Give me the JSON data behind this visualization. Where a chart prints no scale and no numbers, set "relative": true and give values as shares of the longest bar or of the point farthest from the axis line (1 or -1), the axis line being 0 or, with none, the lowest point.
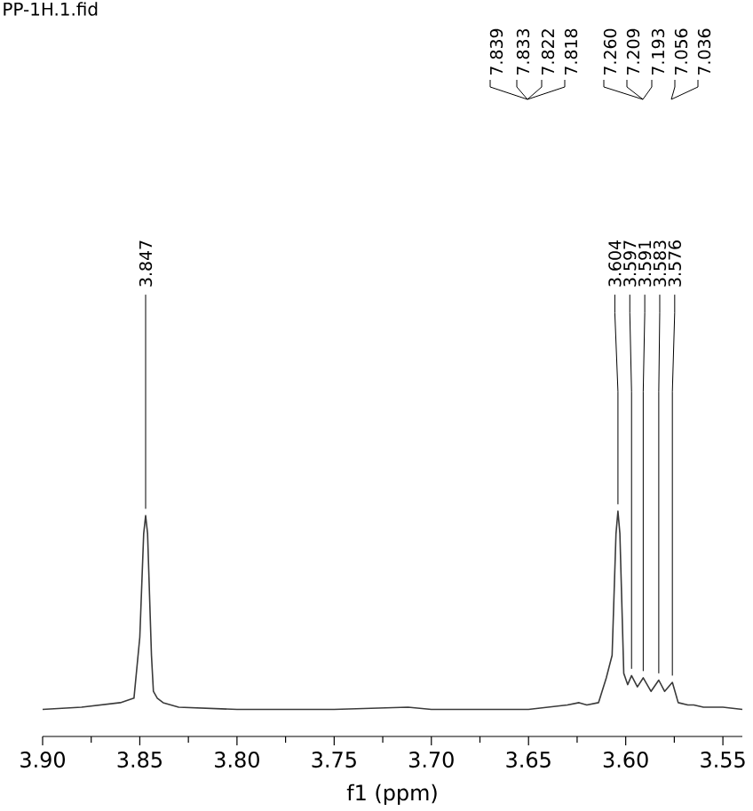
{
  "chart_data": {
    "type": "line",
    "title": "PP-1H.1.fid",
    "xlabel": "f1 (ppm)",
    "relative": true,
    "color": "#3a3a3a",
    "x": [
      3.9,
      3.88,
      3.86,
      3.853,
      3.85,
      3.848,
      3.847,
      3.846,
      3.844,
      3.843,
      3.841,
      3.838,
      3.83,
      3.8,
      3.75,
      3.712,
      3.7,
      3.65,
      3.63,
      3.624,
      3.62,
      3.614,
      3.61,
      3.607,
      3.605,
      3.604,
      3.603,
      3.601,
      3.599,
      3.597,
      3.594,
      3.591,
      3.587,
      3.583,
      3.58,
      3.576,
      3.573,
      3.568,
      3.565,
      3.56,
      3.55,
      3.54
    ],
    "values": [
      0.12,
      0.13,
      0.15,
      0.17,
      0.44,
      0.9,
      0.98,
      0.9,
      0.36,
      0.2,
      0.17,
      0.15,
      0.13,
      0.12,
      0.12,
      0.13,
      0.12,
      0.12,
      0.14,
      0.15,
      0.14,
      0.15,
      0.26,
      0.36,
      0.9,
      1.0,
      0.9,
      0.28,
      0.23,
      0.27,
      0.22,
      0.26,
      0.2,
      0.25,
      0.2,
      0.24,
      0.15,
      0.14,
      0.14,
      0.13,
      0.13,
      0.12
    ],
    "xlim": [
      3.9,
      3.54
    ],
    "xticks": [
      {
        "value": 3.9,
        "label": "3.90"
      },
      {
        "value": 3.875,
        "label": null
      },
      {
        "value": 3.85,
        "label": "3.85"
      },
      {
        "value": 3.825,
        "label": null
      },
      {
        "value": 3.8,
        "label": "3.80"
      },
      {
        "value": 3.775,
        "label": null
      },
      {
        "value": 3.75,
        "label": "3.75"
      },
      {
        "value": 3.725,
        "label": null
      },
      {
        "value": 3.7,
        "label": "3.70"
      },
      {
        "value": 3.675,
        "label": null
      },
      {
        "value": 3.65,
        "label": "3.65"
      },
      {
        "value": 3.625,
        "label": null
      },
      {
        "value": 3.6,
        "label": "3.60"
      },
      {
        "value": 3.575,
        "label": null
      },
      {
        "value": 3.55,
        "label": "3.55"
      }
    ],
    "annotations": [
      {
        "text": "3.847",
        "x": 3.847,
        "y": 0.98
      },
      {
        "text": "3.604",
        "x": 3.604,
        "y": 1.0
      },
      {
        "text": "3.597",
        "x": 3.597,
        "y": 0.27
      },
      {
        "text": "3.591",
        "x": 3.591,
        "y": 0.26
      },
      {
        "text": "3.583",
        "x": 3.583,
        "y": 0.25
      },
      {
        "text": "3.576",
        "x": 3.576,
        "y": 0.24
      },
      "7.839",
      "7.833",
      "7.822",
      "7.818",
      "7.260",
      "7.209",
      "7.193",
      "7.056",
      "7.036"
    ]
  }
}
